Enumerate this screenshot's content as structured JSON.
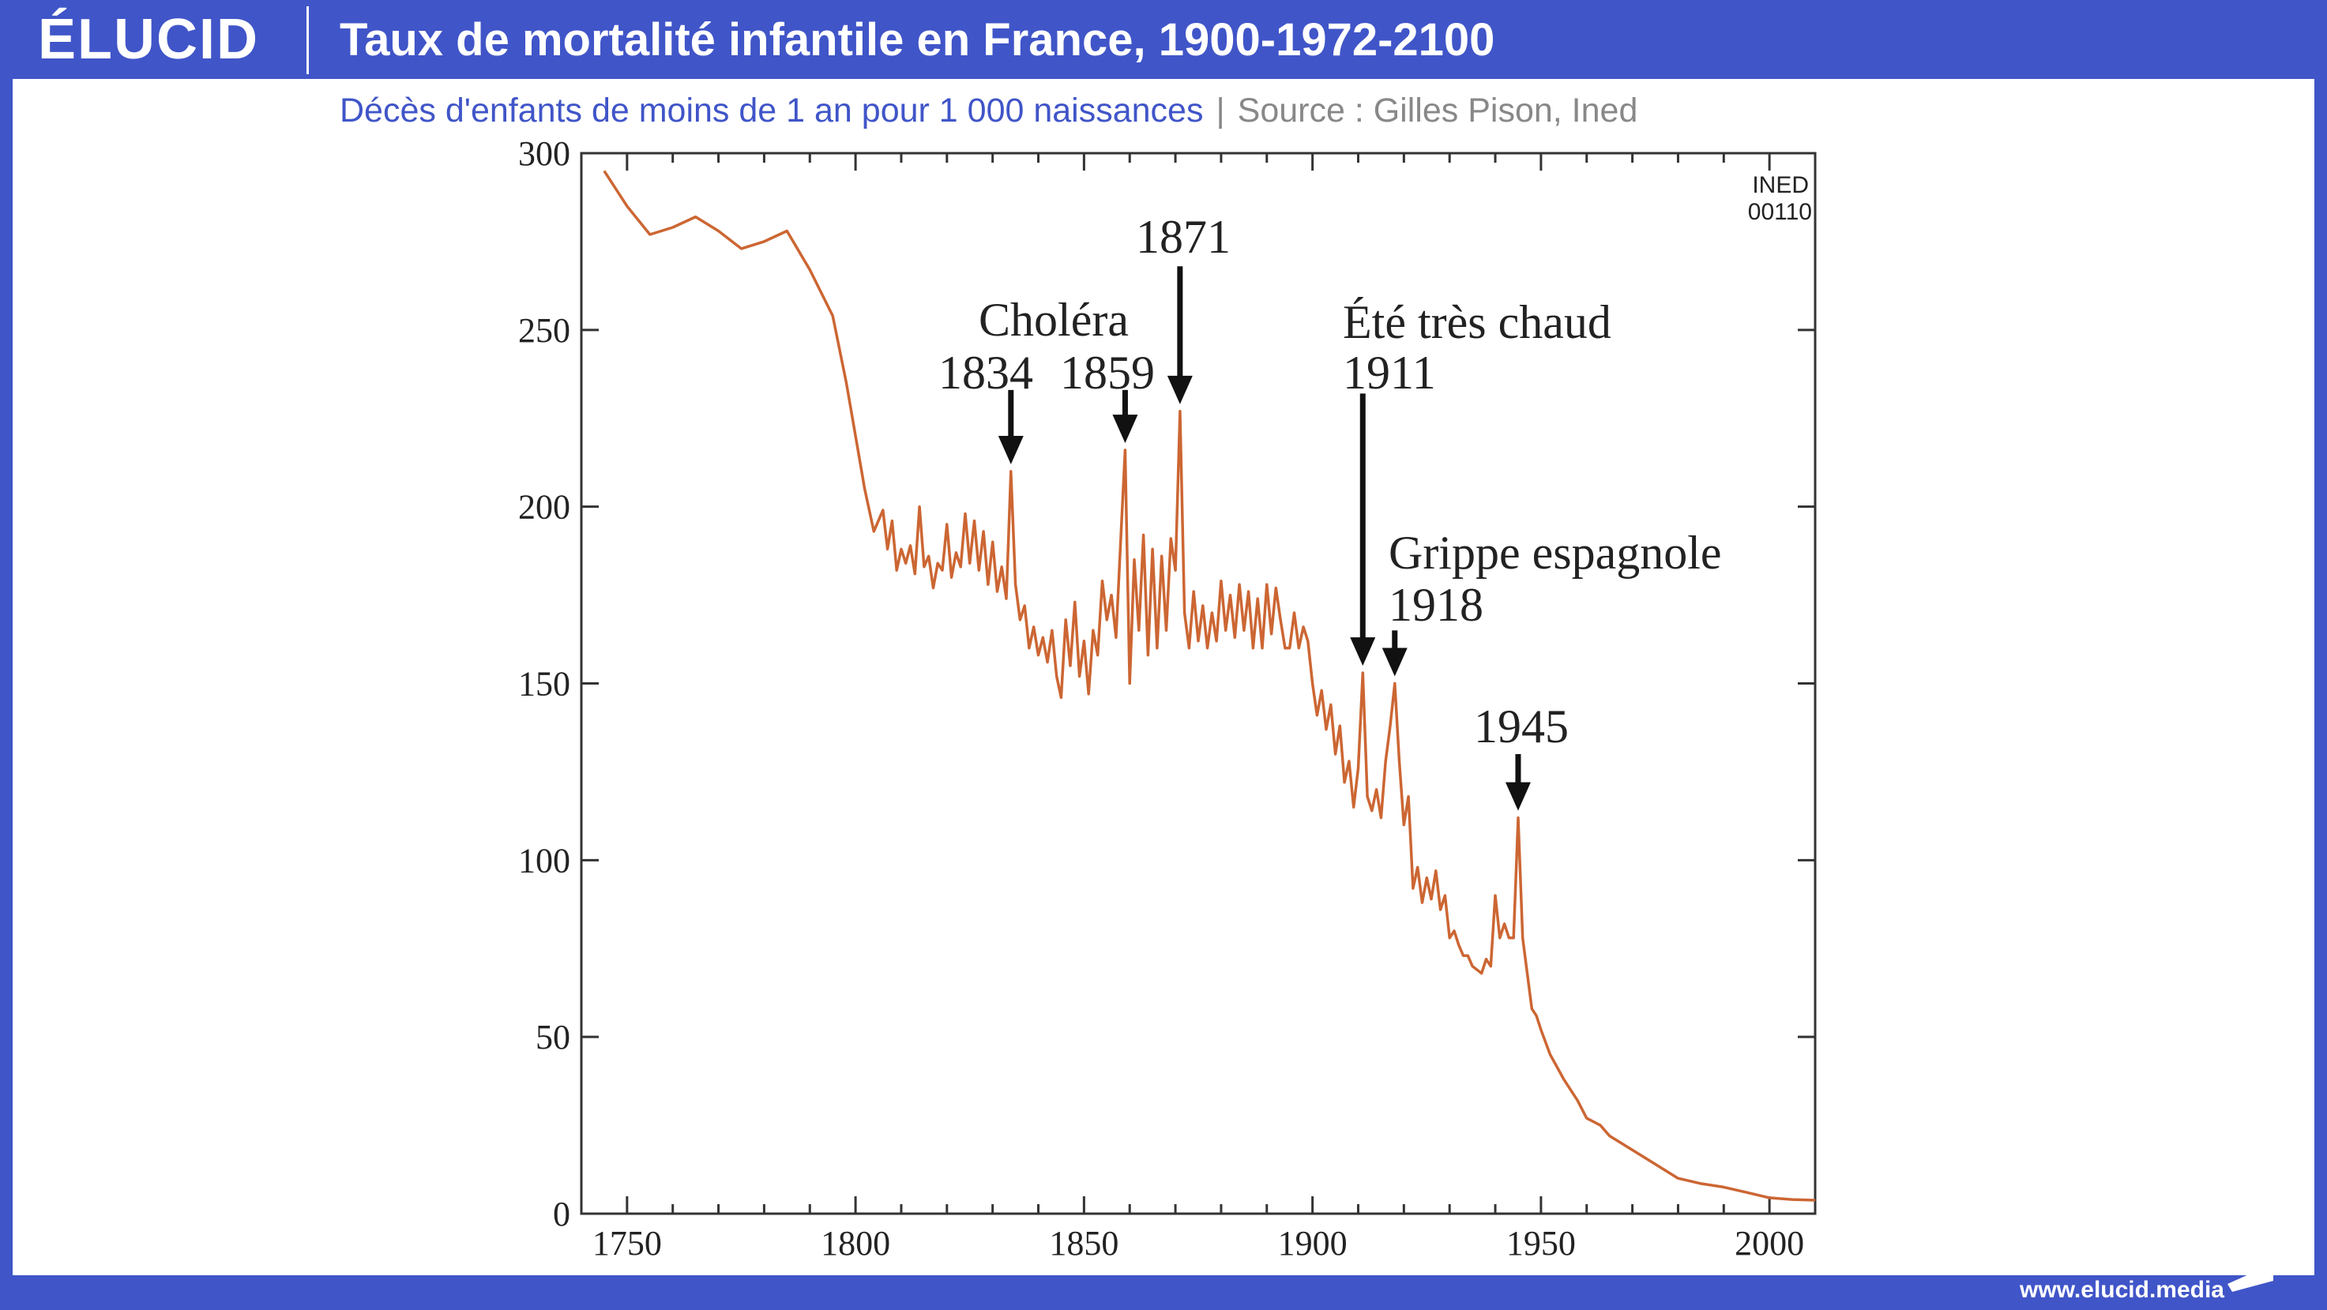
{
  "header": {
    "logo": "ÉLUCID",
    "title": "Taux de mortalité infantile en France, 1900-1972-2100"
  },
  "subtitle": {
    "main": "Décès d'enfants de moins de 1 an pour 1 000 naissances",
    "separator": "|",
    "source": "Source : Gilles Pison, Ined"
  },
  "footer": {
    "url": "www.elucid.media"
  },
  "colors": {
    "brand": "#4055c8",
    "line": "#cc6633",
    "text": "#222222"
  },
  "chart_data": {
    "type": "line",
    "title": "",
    "xlabel": "",
    "ylabel": "",
    "xlim": [
      1740,
      2010
    ],
    "ylim": [
      0,
      300
    ],
    "x_ticks": [
      1750,
      1800,
      1850,
      1900,
      1950,
      2000
    ],
    "y_ticks": [
      0,
      50,
      100,
      150,
      200,
      250,
      300
    ],
    "grid": false,
    "watermark": [
      "INED",
      "00110"
    ],
    "series": [
      {
        "values": [
          [
            1745,
            295
          ],
          [
            1750,
            285
          ],
          [
            1755,
            277
          ],
          [
            1760,
            279
          ],
          [
            1765,
            282
          ],
          [
            1770,
            278
          ],
          [
            1775,
            273
          ],
          [
            1780,
            275
          ],
          [
            1785,
            278
          ],
          [
            1790,
            267
          ],
          [
            1795,
            254
          ],
          [
            1798,
            235
          ],
          [
            1800,
            220
          ],
          [
            1802,
            205
          ],
          [
            1804,
            193
          ],
          [
            1806,
            199
          ],
          [
            1807,
            188
          ],
          [
            1808,
            196
          ],
          [
            1809,
            182
          ],
          [
            1810,
            188
          ],
          [
            1811,
            184
          ],
          [
            1812,
            189
          ],
          [
            1813,
            181
          ],
          [
            1814,
            200
          ],
          [
            1815,
            183
          ],
          [
            1816,
            186
          ],
          [
            1817,
            177
          ],
          [
            1818,
            184
          ],
          [
            1819,
            182
          ],
          [
            1820,
            195
          ],
          [
            1821,
            180
          ],
          [
            1822,
            187
          ],
          [
            1823,
            183
          ],
          [
            1824,
            198
          ],
          [
            1825,
            184
          ],
          [
            1826,
            196
          ],
          [
            1827,
            182
          ],
          [
            1828,
            193
          ],
          [
            1829,
            178
          ],
          [
            1830,
            190
          ],
          [
            1831,
            176
          ],
          [
            1832,
            183
          ],
          [
            1833,
            174
          ],
          [
            1834,
            210
          ],
          [
            1835,
            178
          ],
          [
            1836,
            168
          ],
          [
            1837,
            172
          ],
          [
            1838,
            160
          ],
          [
            1839,
            166
          ],
          [
            1840,
            158
          ],
          [
            1841,
            163
          ],
          [
            1842,
            156
          ],
          [
            1843,
            165
          ],
          [
            1844,
            152
          ],
          [
            1845,
            146
          ],
          [
            1846,
            168
          ],
          [
            1847,
            155
          ],
          [
            1848,
            173
          ],
          [
            1849,
            152
          ],
          [
            1850,
            162
          ],
          [
            1851,
            147
          ],
          [
            1852,
            165
          ],
          [
            1853,
            158
          ],
          [
            1854,
            179
          ],
          [
            1855,
            168
          ],
          [
            1856,
            175
          ],
          [
            1857,
            163
          ],
          [
            1858,
            190
          ],
          [
            1859,
            216
          ],
          [
            1860,
            150
          ],
          [
            1861,
            185
          ],
          [
            1862,
            165
          ],
          [
            1863,
            192
          ],
          [
            1864,
            158
          ],
          [
            1865,
            188
          ],
          [
            1866,
            160
          ],
          [
            1867,
            186
          ],
          [
            1868,
            165
          ],
          [
            1869,
            191
          ],
          [
            1870,
            182
          ],
          [
            1871,
            227
          ],
          [
            1872,
            170
          ],
          [
            1873,
            160
          ],
          [
            1874,
            176
          ],
          [
            1875,
            162
          ],
          [
            1876,
            172
          ],
          [
            1877,
            160
          ],
          [
            1878,
            170
          ],
          [
            1879,
            162
          ],
          [
            1880,
            179
          ],
          [
            1881,
            165
          ],
          [
            1882,
            175
          ],
          [
            1883,
            163
          ],
          [
            1884,
            178
          ],
          [
            1885,
            165
          ],
          [
            1886,
            176
          ],
          [
            1887,
            160
          ],
          [
            1888,
            174
          ],
          [
            1889,
            160
          ],
          [
            1890,
            178
          ],
          [
            1891,
            164
          ],
          [
            1892,
            177
          ],
          [
            1893,
            168
          ],
          [
            1894,
            160
          ],
          [
            1895,
            160
          ],
          [
            1896,
            170
          ],
          [
            1897,
            160
          ],
          [
            1898,
            166
          ],
          [
            1899,
            162
          ],
          [
            1900,
            150
          ],
          [
            1901,
            141
          ],
          [
            1902,
            148
          ],
          [
            1903,
            137
          ],
          [
            1904,
            144
          ],
          [
            1905,
            130
          ],
          [
            1906,
            138
          ],
          [
            1907,
            122
          ],
          [
            1908,
            128
          ],
          [
            1909,
            115
          ],
          [
            1910,
            126
          ],
          [
            1911,
            153
          ],
          [
            1912,
            118
          ],
          [
            1913,
            114
          ],
          [
            1914,
            120
          ],
          [
            1915,
            112
          ],
          [
            1916,
            128
          ],
          [
            1917,
            138
          ],
          [
            1918,
            150
          ],
          [
            1919,
            128
          ],
          [
            1920,
            110
          ],
          [
            1921,
            118
          ],
          [
            1922,
            92
          ],
          [
            1923,
            98
          ],
          [
            1924,
            88
          ],
          [
            1925,
            95
          ],
          [
            1926,
            89
          ],
          [
            1927,
            97
          ],
          [
            1928,
            86
          ],
          [
            1929,
            90
          ],
          [
            1930,
            78
          ],
          [
            1931,
            80
          ],
          [
            1932,
            76
          ],
          [
            1933,
            73
          ],
          [
            1934,
            73
          ],
          [
            1935,
            70
          ],
          [
            1936,
            69
          ],
          [
            1937,
            68
          ],
          [
            1938,
            72
          ],
          [
            1939,
            70
          ],
          [
            1940,
            90
          ],
          [
            1941,
            78
          ],
          [
            1942,
            82
          ],
          [
            1943,
            78
          ],
          [
            1944,
            78
          ],
          [
            1945,
            112
          ],
          [
            1946,
            78
          ],
          [
            1947,
            68
          ],
          [
            1948,
            58
          ],
          [
            1949,
            56
          ],
          [
            1950,
            52
          ],
          [
            1952,
            45
          ],
          [
            1955,
            38
          ],
          [
            1958,
            32
          ],
          [
            1960,
            27
          ],
          [
            1963,
            25
          ],
          [
            1965,
            22
          ],
          [
            1970,
            18
          ],
          [
            1975,
            14
          ],
          [
            1980,
            10
          ],
          [
            1985,
            8.5
          ],
          [
            1990,
            7.5
          ],
          [
            1995,
            6
          ],
          [
            2000,
            4.5
          ],
          [
            2005,
            4
          ],
          [
            2010,
            3.8
          ]
        ]
      }
    ],
    "annotations": [
      {
        "x": 1834,
        "label": "1834",
        "top_label": "Choléra",
        "arrow_from": 233,
        "arrow_to": 212
      },
      {
        "x": 1859,
        "label": "1859",
        "arrow_from": 233,
        "arrow_to": 218
      },
      {
        "x": 1871,
        "label": "1871",
        "arrow_from": 268,
        "arrow_to": 229
      },
      {
        "x": 1911,
        "label": "1911",
        "top_label": "Été très chaud",
        "arrow_from": 232,
        "arrow_to": 155
      },
      {
        "x": 1918,
        "label": "1918",
        "top_label": "Grippe espagnole",
        "arrow_from": 165,
        "arrow_to": 152
      },
      {
        "x": 1945,
        "label": "1945",
        "arrow_from": 130,
        "arrow_to": 114
      }
    ]
  }
}
